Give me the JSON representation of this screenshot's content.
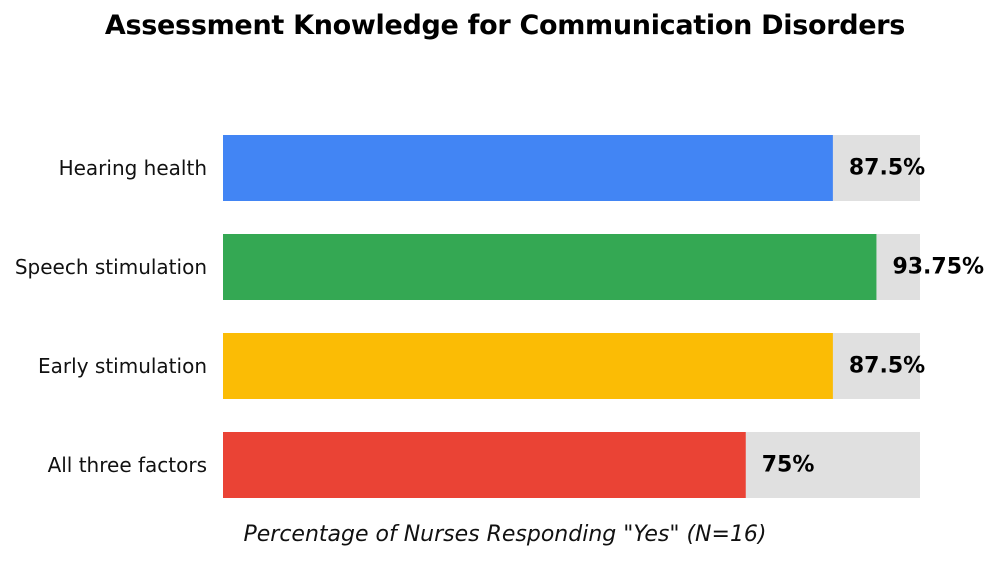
{
  "chart_data": {
    "type": "bar",
    "orientation": "horizontal",
    "title": "Assessment Knowledge for Communication Disorders",
    "xlabel": "Percentage of Nurses Responding \"Yes\" (N=16)",
    "ylabel": "",
    "xlim": [
      0,
      100
    ],
    "grid": false,
    "legend": "none",
    "categories": [
      "Hearing health",
      "Speech stimulation",
      "Early stimulation",
      "All three factors"
    ],
    "values": [
      87.5,
      93.75,
      87.5,
      75
    ],
    "value_labels": [
      "87.5%",
      "93.75%",
      "87.5%",
      "75%"
    ],
    "colors": [
      "#4285f4",
      "#34a853",
      "#fbbc05",
      "#ea4335"
    ],
    "track_color": "#e0e0e0"
  }
}
